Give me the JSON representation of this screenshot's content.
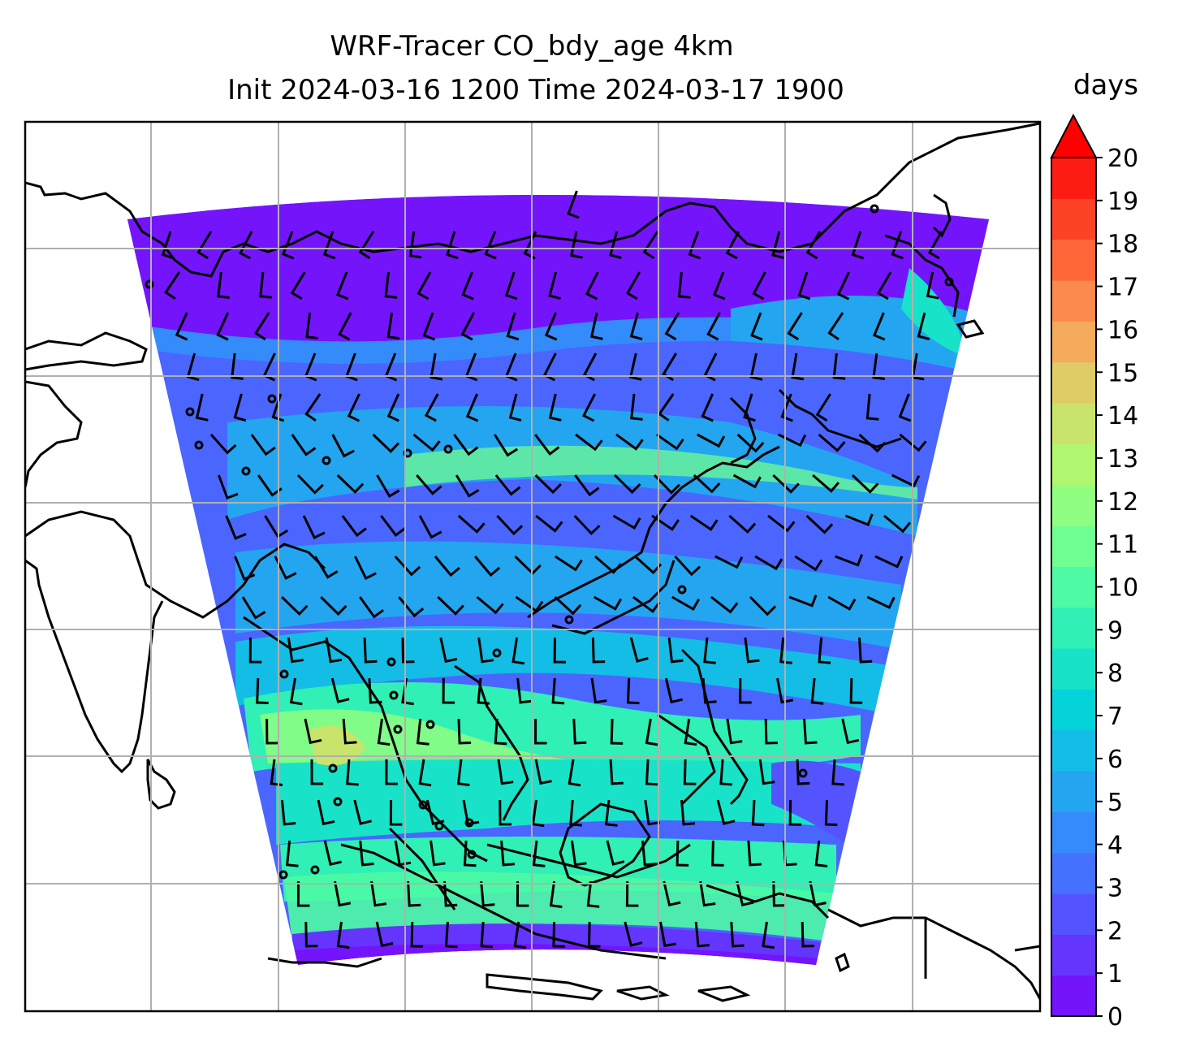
{
  "title": {
    "line1": "WRF-Tracer CO_bdy_age 4km",
    "line2": "Init 2024-03-16 1200 Time 2024-03-17 1900"
  },
  "colorbar": {
    "label": "days",
    "ticks": [
      "0",
      "1",
      "2",
      "3",
      "4",
      "5",
      "6",
      "7",
      "8",
      "9",
      "10",
      "11",
      "12",
      "13",
      "14",
      "15",
      "16",
      "17",
      "18",
      "19",
      "20"
    ],
    "extend": "max",
    "colors": [
      "#7414fb",
      "#6435fd",
      "#5454fe",
      "#4471fd",
      "#348bfa",
      "#24a5f0",
      "#14bde5",
      "#04d3da",
      "#18e3c8",
      "#30f0b5",
      "#4efaa4",
      "#6ffe92",
      "#90fe80",
      "#b0f66f",
      "#c8e46a",
      "#e0cc66",
      "#f4ab5c",
      "#fc8a4c",
      "#fe6838",
      "#fd4326",
      "#fd1c12"
    ],
    "extend_color": "#ff0000"
  },
  "map": {
    "field": "CO_bdy_age",
    "units": "days",
    "gridlines": true
  }
}
